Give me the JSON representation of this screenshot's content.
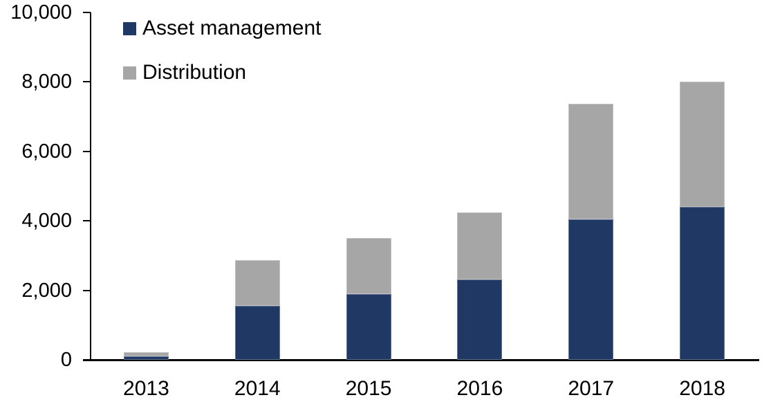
{
  "chart_data": {
    "type": "bar",
    "stacked": true,
    "categories": [
      "2013",
      "2014",
      "2015",
      "2016",
      "2017",
      "2018"
    ],
    "series": [
      {
        "name": "Asset management",
        "color": "#1F3864",
        "values": [
          100,
          1560,
          1900,
          2320,
          4040,
          4400
        ]
      },
      {
        "name": "Distribution",
        "color": "#A6A6A6",
        "values": [
          120,
          1300,
          1600,
          1930,
          3330,
          3600
        ]
      }
    ],
    "stacked_totals": [
      220,
      2860,
      3500,
      4250,
      7370,
      8000
    ],
    "ylim": [
      0,
      10000
    ],
    "ytick_labels": [
      "0",
      "2,000",
      "4,000",
      "6,000",
      "8,000",
      "10,000"
    ],
    "ytick_values": [
      0,
      2000,
      4000,
      6000,
      8000,
      10000
    ],
    "grid": false,
    "legend_position": "top-left",
    "axis_color": "#000000",
    "background_color": "#FFFFFF"
  }
}
